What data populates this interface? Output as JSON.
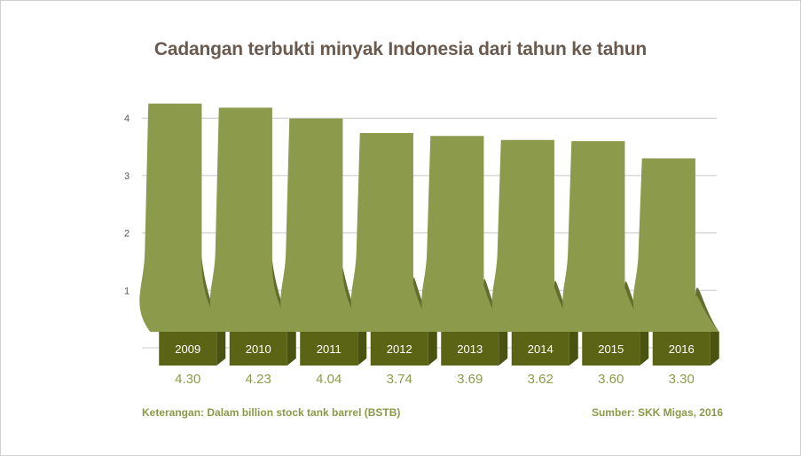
{
  "chart_data": {
    "type": "bar",
    "title": "Cadangan terbukti minyak Indonesia dari tahun ke tahun",
    "categories": [
      "2009",
      "2010",
      "2011",
      "2012",
      "2013",
      "2014",
      "2015",
      "2016"
    ],
    "values": [
      4.3,
      4.23,
      4.04,
      3.74,
      3.69,
      3.62,
      3.6,
      3.3
    ],
    "value_labels": [
      "4.30",
      "4.23",
      "4.04",
      "3.74",
      "3.69",
      "3.62",
      "3.60",
      "3.30"
    ],
    "yticks": [
      "1",
      "2",
      "3",
      "4"
    ],
    "ylim": [
      0,
      4.6
    ],
    "grid": true,
    "note": "Keterangan: Dalam billion stock tank barrel (BSTB)",
    "source": "Sumber: SKK Migas, 2016",
    "colors": {
      "bar": "#8c9a4c",
      "bar_shadow": "#636d2c",
      "label_box": "#5b6414",
      "value_text": "#8a9a48",
      "title": "#6b5a4e"
    }
  }
}
